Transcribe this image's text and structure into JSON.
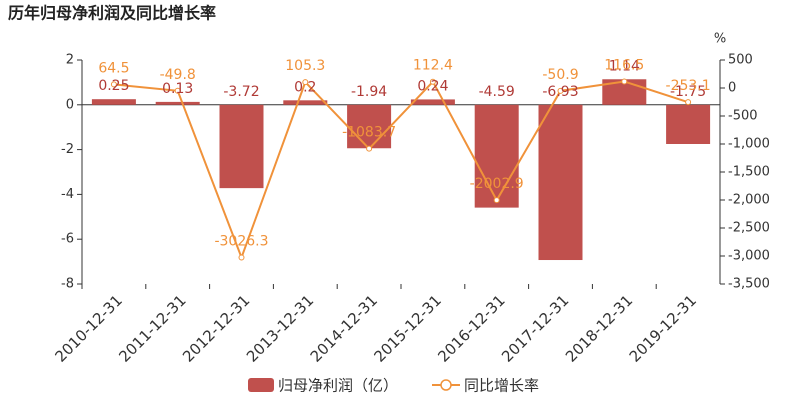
{
  "chart_data": {
    "type": "bar-line",
    "title": "历年归母净利润及同比增长率",
    "y2_label": "%",
    "categories": [
      "2010-12-31",
      "2011-12-31",
      "2012-12-31",
      "2013-12-31",
      "2014-12-31",
      "2015-12-31",
      "2016-12-31",
      "2017-12-31",
      "2018-12-31",
      "2019-12-31"
    ],
    "series": [
      {
        "name": "归母净利润（亿）",
        "type": "bar",
        "color": "#c0504d",
        "label_color": "#b03a36",
        "values": [
          0.25,
          0.13,
          -3.72,
          0.2,
          -1.94,
          0.24,
          -4.59,
          -6.93,
          1.14,
          -1.75
        ]
      },
      {
        "name": "同比增长率",
        "type": "line",
        "axis": "y2",
        "color": "#f0923a",
        "values": [
          64.5,
          -49.8,
          -3026.3,
          105.3,
          -1083.7,
          112.4,
          -2002.9,
          -50.9,
          116.5,
          -253.1
        ]
      }
    ],
    "ylim": [
      -8,
      2
    ],
    "yticks": [
      -8,
      -6,
      -4,
      -2,
      0,
      2
    ],
    "y2lim": [
      -3500,
      500
    ],
    "y2ticks": [
      500,
      0,
      -500,
      {
        "value": -1000,
        "label": "-1,000"
      },
      {
        "value": -1500,
        "label": "-1,500"
      },
      {
        "value": -2000,
        "label": "-2,000"
      },
      {
        "value": -2500,
        "label": "-2,500"
      },
      {
        "value": -3000,
        "label": "-3,000"
      },
      {
        "value": -3500,
        "label": "-3,500"
      }
    ]
  }
}
